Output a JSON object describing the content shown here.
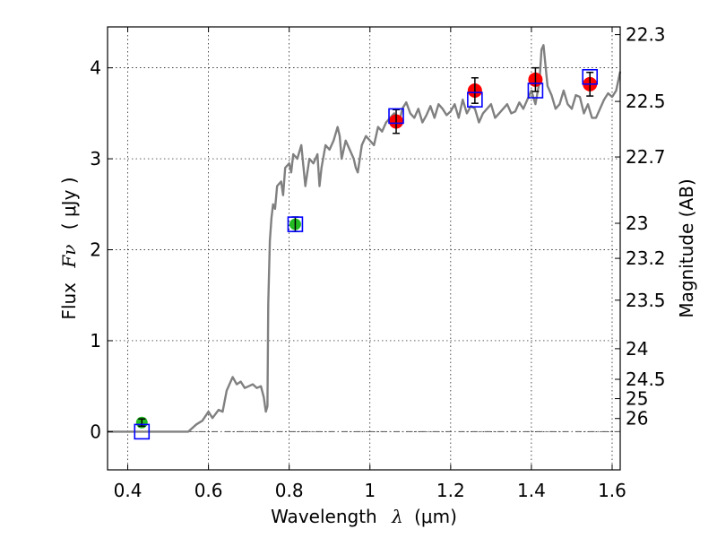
{
  "chart_data": {
    "type": "scatter",
    "xlabel_text": "Wavelength",
    "xlabel_symbol": "λ",
    "xlabel_unit": "(μm)",
    "ylabel_text": "Flux",
    "ylabel_symbol": "Fν",
    "ylabel_unit": "( μJy )",
    "y2label": "Magnitude (AB)",
    "xlim": [
      0.35,
      1.62
    ],
    "ylim": [
      -0.42,
      4.45
    ],
    "grid": true,
    "x_ticks": [
      0.4,
      0.6,
      0.8,
      1.0,
      1.2,
      1.4,
      1.6
    ],
    "x_tick_labels": [
      "0.4",
      "0.6",
      "0.8",
      "1",
      "1.2",
      "1.4",
      "1.6"
    ],
    "y_ticks": [
      0,
      1,
      2,
      3,
      4
    ],
    "y_tick_labels": [
      "0",
      "1",
      "2",
      "3",
      "4"
    ],
    "mag_ticks": [
      22.3,
      22.5,
      22.7,
      23,
      23.2,
      23.5,
      24,
      24.5,
      25,
      26
    ],
    "mag_tick_labels": [
      "22.3",
      "22.5",
      "22.7",
      "23",
      "23.2",
      "23.5",
      "24",
      "24.5",
      "25",
      "26"
    ],
    "colors": {
      "template": "#808080",
      "model_box": "#0000ff",
      "obs_red": "#ff0000",
      "obs_green": "#22bb22",
      "errorbar": "#000000",
      "zero_line": "#555555"
    },
    "series": [
      {
        "kind": "template_line",
        "x": [
          0.35,
          0.55,
          0.57,
          0.585,
          0.6,
          0.61,
          0.625,
          0.635,
          0.645,
          0.66,
          0.67,
          0.68,
          0.69,
          0.7,
          0.71,
          0.72,
          0.73,
          0.737,
          0.742,
          0.746,
          0.748,
          0.752,
          0.756,
          0.76,
          0.765,
          0.77,
          0.78,
          0.785,
          0.79,
          0.8,
          0.805,
          0.81,
          0.82,
          0.83,
          0.84,
          0.85,
          0.86,
          0.87,
          0.875,
          0.88,
          0.89,
          0.9,
          0.91,
          0.92,
          0.925,
          0.93,
          0.94,
          0.95,
          0.96,
          0.965,
          0.97,
          0.98,
          0.99,
          1.0,
          1.01,
          1.02,
          1.03,
          1.04,
          1.05,
          1.06,
          1.07,
          1.08,
          1.09,
          1.1,
          1.11,
          1.12,
          1.13,
          1.14,
          1.15,
          1.16,
          1.17,
          1.18,
          1.19,
          1.2,
          1.21,
          1.22,
          1.23,
          1.24,
          1.25,
          1.26,
          1.27,
          1.28,
          1.29,
          1.3,
          1.31,
          1.32,
          1.33,
          1.34,
          1.35,
          1.36,
          1.37,
          1.38,
          1.39,
          1.4,
          1.41,
          1.42,
          1.425,
          1.43,
          1.44,
          1.45,
          1.46,
          1.47,
          1.48,
          1.49,
          1.5,
          1.51,
          1.52,
          1.53,
          1.54,
          1.55,
          1.56,
          1.57,
          1.58,
          1.59,
          1.6,
          1.61,
          1.62
        ],
        "y": [
          0.0,
          0.0,
          0.08,
          0.12,
          0.22,
          0.15,
          0.24,
          0.22,
          0.45,
          0.6,
          0.52,
          0.55,
          0.48,
          0.5,
          0.52,
          0.48,
          0.5,
          0.38,
          0.22,
          0.28,
          1.4,
          2.1,
          2.35,
          2.5,
          2.45,
          2.7,
          2.75,
          2.6,
          2.9,
          2.95,
          2.85,
          3.05,
          3.0,
          3.15,
          2.7,
          3.0,
          2.95,
          3.05,
          2.7,
          2.9,
          3.15,
          3.1,
          3.2,
          3.35,
          3.25,
          3.0,
          3.2,
          3.1,
          3.0,
          2.9,
          2.85,
          3.15,
          3.25,
          3.2,
          3.15,
          3.35,
          3.3,
          3.4,
          3.45,
          3.5,
          3.35,
          3.55,
          3.62,
          3.5,
          3.45,
          3.55,
          3.4,
          3.48,
          3.58,
          3.45,
          3.6,
          3.55,
          3.48,
          3.52,
          3.6,
          3.45,
          3.65,
          3.5,
          3.58,
          3.55,
          3.4,
          3.5,
          3.55,
          3.6,
          3.45,
          3.5,
          3.55,
          3.6,
          3.5,
          3.52,
          3.62,
          3.55,
          3.65,
          3.75,
          3.6,
          3.85,
          4.2,
          4.25,
          3.8,
          3.7,
          3.55,
          3.6,
          3.75,
          3.6,
          3.55,
          3.7,
          3.68,
          3.5,
          3.6,
          3.45,
          3.45,
          3.55,
          3.65,
          3.72,
          3.68,
          3.75,
          3.96
        ]
      },
      {
        "kind": "model_boxes",
        "x": [
          0.435,
          0.815,
          1.065,
          1.26,
          1.41,
          1.545
        ],
        "y": [
          0.0,
          2.28,
          3.47,
          3.65,
          3.75,
          3.9
        ]
      },
      {
        "kind": "observed_red",
        "x": [
          1.065,
          1.26,
          1.41,
          1.545
        ],
        "y": [
          3.41,
          3.75,
          3.87,
          3.82
        ],
        "yerr": [
          0.13,
          0.14,
          0.13,
          0.13
        ]
      },
      {
        "kind": "observed_green",
        "x": [
          0.435,
          0.815
        ],
        "y": [
          0.1,
          2.28
        ],
        "yerr": [
          0.04,
          0.08
        ]
      }
    ]
  }
}
